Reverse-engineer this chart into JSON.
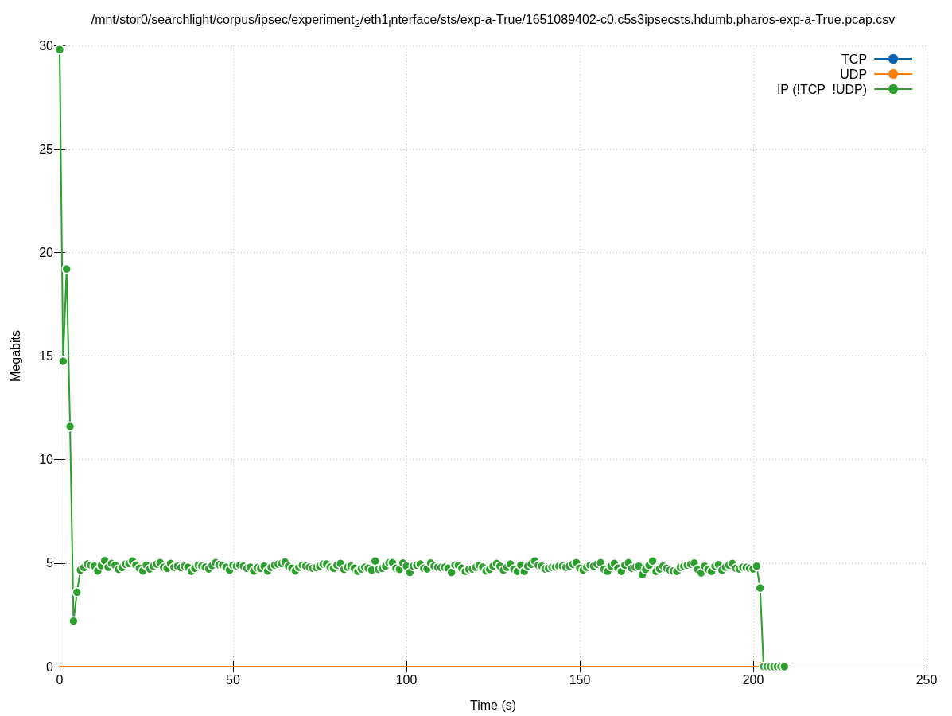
{
  "chart_data": {
    "type": "line",
    "title": "/mnt/stor0/searchlight/corpus/ipsec/experiment$_{2}$/eth1$_{i}$nterface/sts/exp-a-True/1651089402-c0.c5s3ipsecsts.hdumb.pharos-exp-a-True.pcap.csv",
    "xlabel": "Time (s)",
    "ylabel": "Megabits",
    "x": [
      0,
      1,
      2,
      3,
      4,
      5,
      6,
      7,
      8,
      9,
      10,
      11,
      12,
      13,
      14,
      15,
      16,
      17,
      18,
      19,
      20,
      21,
      22,
      23,
      24,
      25,
      26,
      27,
      28,
      29,
      30,
      31,
      32,
      33,
      34,
      35,
      36,
      37,
      38,
      39,
      40,
      41,
      42,
      43,
      44,
      45,
      46,
      47,
      48,
      49,
      50,
      51,
      52,
      53,
      54,
      55,
      56,
      57,
      58,
      59,
      60,
      61,
      62,
      63,
      64,
      65,
      66,
      67,
      68,
      69,
      70,
      71,
      72,
      73,
      74,
      75,
      76,
      77,
      78,
      79,
      80,
      81,
      82,
      83,
      84,
      85,
      86,
      87,
      88,
      89,
      90,
      91,
      92,
      93,
      94,
      95,
      96,
      97,
      98,
      99,
      100,
      101,
      102,
      103,
      104,
      105,
      106,
      107,
      108,
      109,
      110,
      111,
      112,
      113,
      114,
      115,
      116,
      117,
      118,
      119,
      120,
      121,
      122,
      123,
      124,
      125,
      126,
      127,
      128,
      129,
      130,
      131,
      132,
      133,
      134,
      135,
      136,
      137,
      138,
      139,
      140,
      141,
      142,
      143,
      144,
      145,
      146,
      147,
      148,
      149,
      150,
      151,
      152,
      153,
      154,
      155,
      156,
      157,
      158,
      159,
      160,
      161,
      162,
      163,
      164,
      165,
      166,
      167,
      168,
      169,
      170,
      171,
      172,
      173,
      174,
      175,
      176,
      177,
      178,
      179,
      180,
      181,
      182,
      183,
      184,
      185,
      186,
      187,
      188,
      189,
      190,
      191,
      192,
      193,
      194,
      195,
      196,
      197,
      198,
      199,
      200,
      201,
      202,
      203,
      204,
      205,
      206,
      207,
      208,
      209
    ],
    "series": [
      {
        "name": "TCP",
        "color": "#0060ad",
        "values": [
          null,
          null,
          null,
          null,
          null,
          null,
          null,
          null,
          null,
          null,
          null,
          null,
          null,
          null,
          null,
          null,
          null,
          null,
          null,
          null,
          null,
          null,
          null,
          null,
          null,
          null,
          null,
          null,
          null,
          null,
          null,
          null,
          null,
          null,
          null,
          null,
          null,
          null,
          null,
          null,
          null,
          null,
          null,
          null,
          null,
          null,
          null,
          null,
          null,
          null,
          null,
          null,
          null,
          null,
          null,
          null,
          null,
          null,
          null,
          null,
          null,
          null,
          null,
          null,
          null,
          null,
          null,
          null,
          null,
          null,
          null,
          null,
          null,
          null,
          null,
          null,
          null,
          null,
          null,
          null,
          null,
          null,
          null,
          null,
          null,
          null,
          null,
          null,
          null,
          null,
          null,
          null,
          null,
          null,
          null,
          null,
          null,
          null,
          null,
          null,
          null,
          null,
          null,
          null,
          null,
          null,
          null,
          null,
          null,
          null,
          null,
          null,
          null,
          null,
          null,
          null,
          null,
          null,
          null,
          null,
          null,
          null,
          null,
          null,
          null,
          null,
          null,
          null,
          null,
          null,
          null,
          null,
          null,
          null,
          null,
          null,
          null,
          null,
          null,
          null,
          null,
          null,
          null,
          null,
          null,
          null,
          null,
          null,
          null,
          null,
          null,
          null,
          null,
          null,
          null,
          null,
          null,
          null,
          null,
          null,
          null,
          null,
          null,
          null,
          null,
          null,
          null,
          null,
          null,
          null,
          null,
          null,
          null,
          null,
          null,
          null,
          null,
          null,
          null,
          null,
          null,
          null,
          null,
          null,
          null,
          null,
          null,
          null,
          null,
          null,
          null,
          null,
          null,
          null,
          null,
          null,
          null,
          null,
          null,
          null,
          null,
          null,
          null,
          null,
          null,
          null,
          null,
          null,
          null,
          null
        ]
      },
      {
        "name": "UDP",
        "color": "#ff7f0e",
        "marker": "none",
        "values": [
          0,
          0,
          0,
          0,
          0,
          0,
          0,
          0,
          0,
          0,
          0,
          0,
          0,
          0,
          0,
          0,
          0,
          0,
          0,
          0,
          0,
          0,
          0,
          0,
          0,
          0,
          0,
          0,
          0,
          0,
          0,
          0,
          0,
          0,
          0,
          0,
          0,
          0,
          0,
          0,
          0,
          0,
          0,
          0,
          0,
          0,
          0,
          0,
          0,
          0,
          0,
          0,
          0,
          0,
          0,
          0,
          0,
          0,
          0,
          0,
          0,
          0,
          0,
          0,
          0,
          0,
          0,
          0,
          0,
          0,
          0,
          0,
          0,
          0,
          0,
          0,
          0,
          0,
          0,
          0,
          0,
          0,
          0,
          0,
          0,
          0,
          0,
          0,
          0,
          0,
          0,
          0,
          0,
          0,
          0,
          0,
          0,
          0,
          0,
          0,
          0,
          0,
          0,
          0,
          0,
          0,
          0,
          0,
          0,
          0,
          0,
          0,
          0,
          0,
          0,
          0,
          0,
          0,
          0,
          0,
          0,
          0,
          0,
          0,
          0,
          0,
          0,
          0,
          0,
          0,
          0,
          0,
          0,
          0,
          0,
          0,
          0,
          0,
          0,
          0,
          0,
          0,
          0,
          0,
          0,
          0,
          0,
          0,
          0,
          0,
          0,
          0,
          0,
          0,
          0,
          0,
          0,
          0,
          0,
          0,
          0,
          0,
          0,
          0,
          0,
          0,
          0,
          0,
          0,
          0,
          0,
          0,
          0,
          0,
          0,
          0,
          0,
          0,
          0,
          0,
          0,
          0,
          0,
          0,
          0,
          0,
          0,
          0,
          0,
          0,
          0,
          0,
          0,
          0,
          0,
          0,
          0,
          0,
          0,
          0,
          0,
          0,
          0,
          null,
          null,
          null,
          null,
          null,
          null,
          null
        ]
      },
      {
        "name": "IP (!TCP  !UDP)",
        "color": "#2ca02c",
        "values": [
          29.8,
          14.75,
          19.2,
          11.6,
          2.2,
          3.6,
          4.66,
          4.79,
          4.95,
          4.9,
          4.85,
          4.62,
          4.88,
          5.12,
          4.8,
          4.98,
          4.9,
          4.7,
          4.79,
          4.95,
          4.98,
          5.1,
          4.9,
          4.75,
          4.62,
          4.9,
          4.72,
          4.85,
          4.95,
          5.02,
          4.8,
          4.75,
          4.98,
          4.8,
          4.85,
          4.79,
          4.85,
          4.8,
          4.6,
          4.75,
          4.9,
          4.85,
          4.8,
          4.72,
          4.88,
          5.02,
          4.92,
          4.9,
          4.8,
          4.66,
          4.9,
          4.85,
          4.9,
          4.85,
          4.75,
          4.8,
          4.62,
          4.78,
          4.75,
          4.85,
          4.62,
          4.8,
          4.9,
          4.95,
          4.98,
          5.05,
          4.85,
          4.75,
          4.62,
          4.8,
          4.9,
          4.85,
          4.8,
          4.75,
          4.78,
          4.85,
          4.95,
          4.95,
          4.8,
          4.75,
          4.9,
          4.98,
          4.7,
          4.8,
          4.85,
          4.75,
          4.6,
          4.72,
          4.8,
          4.75,
          4.66,
          5.1,
          4.7,
          4.75,
          4.85,
          5.02,
          5.02,
          4.75,
          4.7,
          5.0,
          4.85,
          4.55,
          4.85,
          4.9,
          4.95,
          4.75,
          4.72,
          5.0,
          4.85,
          4.8,
          4.79,
          4.8,
          4.75,
          4.55,
          4.9,
          4.88,
          4.75,
          4.6,
          4.7,
          4.72,
          4.8,
          4.9,
          4.8,
          4.62,
          4.7,
          4.85,
          4.98,
          4.85,
          4.66,
          4.8,
          4.95,
          4.7,
          4.6,
          4.9,
          4.6,
          4.85,
          4.95,
          5.1,
          4.9,
          4.85,
          4.72,
          4.75,
          4.8,
          4.82,
          4.85,
          4.85,
          4.8,
          4.85,
          4.95,
          5.02,
          4.75,
          4.66,
          4.8,
          4.9,
          4.85,
          4.95,
          5.02,
          4.7,
          4.6,
          4.85,
          4.98,
          4.75,
          4.6,
          4.9,
          5.02,
          4.75,
          4.8,
          4.85,
          4.45,
          4.7,
          4.9,
          5.1,
          4.6,
          4.72,
          4.85,
          4.75,
          4.66,
          4.62,
          4.6,
          4.8,
          4.85,
          4.9,
          4.95,
          5.0,
          4.7,
          4.53,
          4.85,
          4.7,
          4.6,
          4.85,
          4.92,
          4.66,
          4.8,
          4.9,
          4.98,
          4.75,
          4.72,
          4.8,
          4.79,
          4.75,
          4.72,
          4.85,
          3.8,
          0,
          0,
          0,
          0,
          0,
          0,
          0
        ]
      }
    ],
    "xlim": [
      0,
      250
    ],
    "xticks": [
      0,
      50,
      100,
      150,
      200,
      250
    ],
    "ylim": [
      0,
      30
    ],
    "yticks": [
      0,
      5,
      10,
      15,
      20,
      25,
      30
    ],
    "grid": true,
    "legend": "top right",
    "marker": "circle",
    "line_style": "solid"
  }
}
